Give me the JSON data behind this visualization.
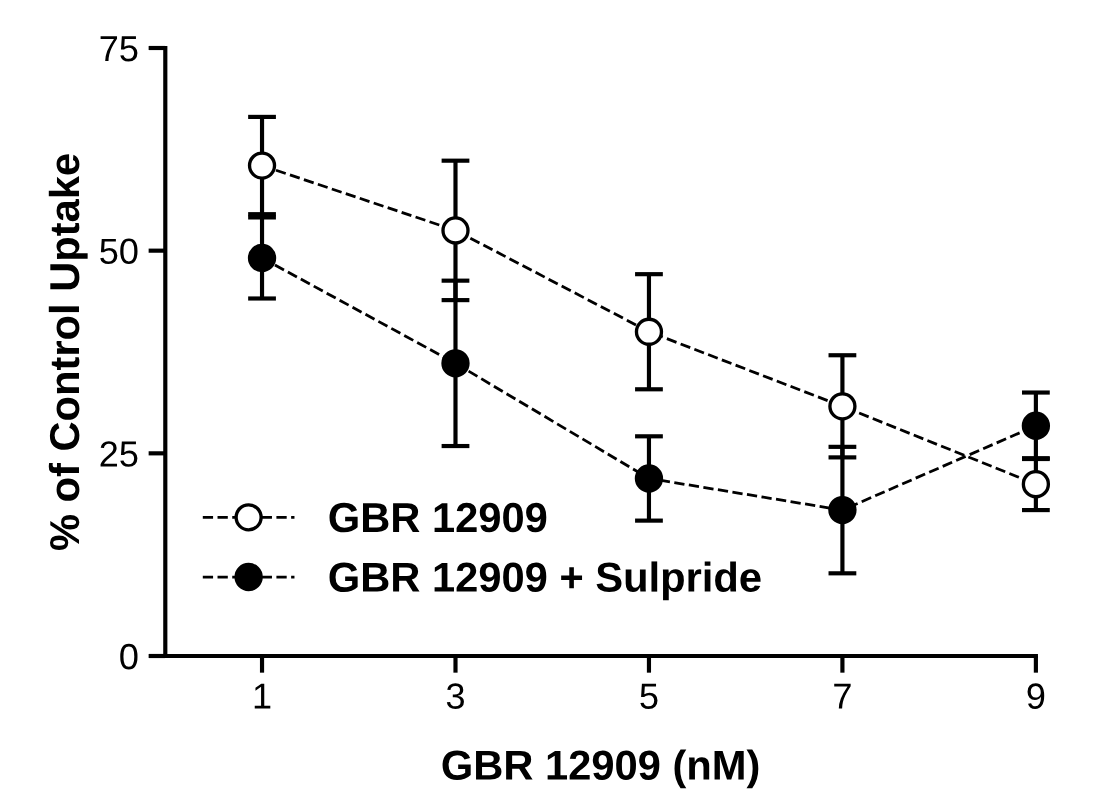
{
  "chart_data": {
    "type": "line",
    "xlabel": "GBR 12909 (nM)",
    "ylabel": "% of Control Uptake",
    "x": [
      1,
      3,
      5,
      7,
      9
    ],
    "series": [
      {
        "name": "GBR 12909",
        "color": "#ffffff",
        "values": [
          60.5,
          52.5,
          40,
          30.8,
          21.2
        ],
        "errors": [
          6,
          8.6,
          7.1,
          6.3,
          3.2
        ]
      },
      {
        "name": "GBR 12909 + Sulpride",
        "color": "#000000",
        "values": [
          49.1,
          36.1,
          21.9,
          18,
          28.4
        ],
        "errors": [
          5,
          10.2,
          5.2,
          7.8,
          4.1
        ]
      }
    ],
    "xlim": [
      0,
      9
    ],
    "xticks": [
      1,
      3,
      5,
      7,
      9
    ],
    "ylim": [
      0,
      75
    ],
    "yticks": [
      0,
      25,
      50,
      75
    ],
    "marker": "circle",
    "line_style": "dashed",
    "legend": "bottom left",
    "grid": false
  }
}
